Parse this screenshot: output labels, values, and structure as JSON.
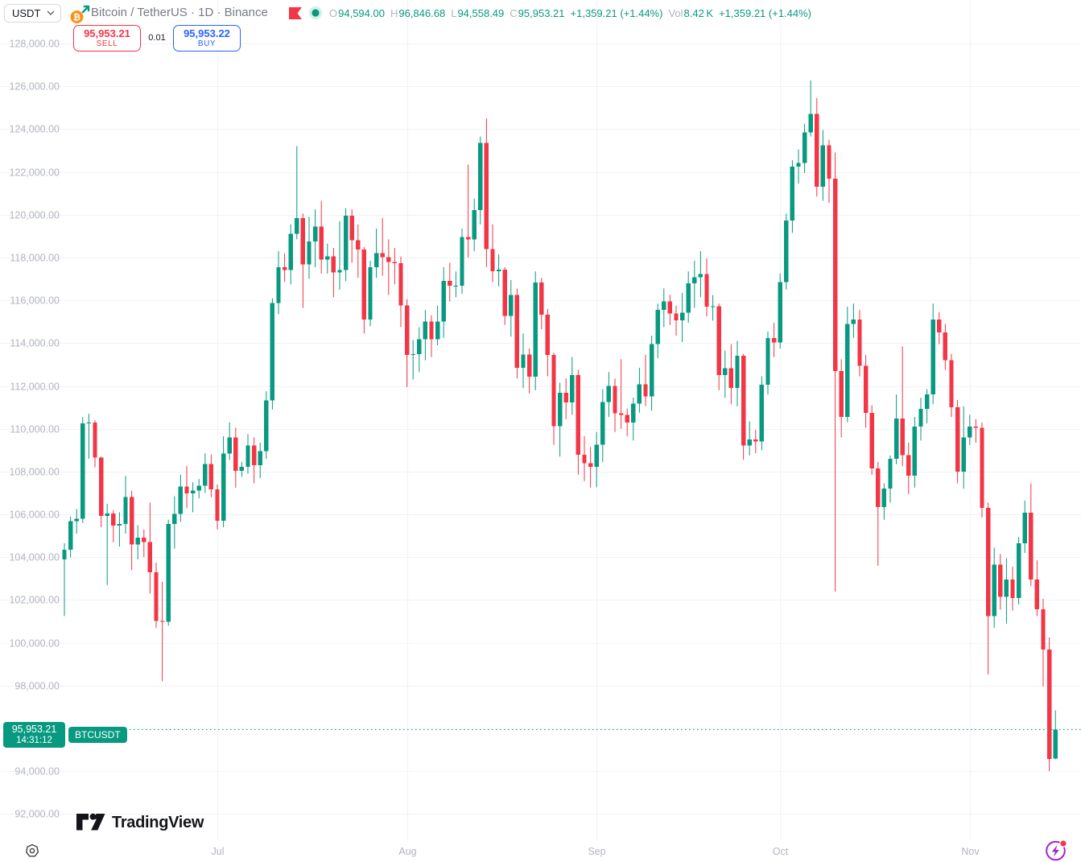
{
  "colors": {
    "up": "#089981",
    "down": "#f23645",
    "accent_teal": "#089981",
    "buy_blue": "#2962ff",
    "sell_red": "#f23645",
    "axis_text": "#b2b5be",
    "title_text": "#787b86",
    "dark_text": "#131722",
    "grid": "#f0f2f6",
    "fab_purple": "#a224c9",
    "bitcoin_orange": "#f7931a",
    "logo_black": "#14151a"
  },
  "header": {
    "quote_currency_selector": {
      "value": "USDT"
    },
    "symbol_title": "Bitcoin / TetherUS · 1D · Binance",
    "legend": {
      "o_label": "O",
      "o_value": "94,594.00",
      "h_label": "H",
      "h_value": "96,846.68",
      "l_label": "L",
      "l_value": "94,558.49",
      "c_label": "C",
      "c_value": "95,953.21",
      "change": "+1,359.21 (+1.44%)",
      "vol_label": "Vol",
      "vol_value": "8.42 K",
      "vol_change": "+1,359.21 (+1.44%)"
    },
    "sell_button": {
      "price": "95,953.21",
      "label": "SELL"
    },
    "buy_button": {
      "price": "95,953.22",
      "label": "BUY"
    },
    "spread": "0.01"
  },
  "price_line": {
    "price_text": "95,953.21",
    "countdown": "14:31:12",
    "symbol_badge": "BTCUSDT",
    "value": 95953.21
  },
  "footer": {
    "brand": "TradingView"
  },
  "chart_data": {
    "type": "candlestick",
    "title": "Bitcoin / TetherUS",
    "exchange": "Binance",
    "interval": "1D",
    "legend_position": "top-left",
    "grid": true,
    "ylim": [
      92000,
      128000
    ],
    "current_price": 95953.21,
    "y_ticks": [
      {
        "value": 128000,
        "label": "128,000.00"
      },
      {
        "value": 126000,
        "label": "126,000.00"
      },
      {
        "value": 124000,
        "label": "124,000.00"
      },
      {
        "value": 122000,
        "label": "122,000.00"
      },
      {
        "value": 120000,
        "label": "120,000.00"
      },
      {
        "value": 118000,
        "label": "118,000.00"
      },
      {
        "value": 116000,
        "label": "116,000.00"
      },
      {
        "value": 114000,
        "label": "114,000.00"
      },
      {
        "value": 112000,
        "label": "112,000.00"
      },
      {
        "value": 110000,
        "label": "110,000.00"
      },
      {
        "value": 108000,
        "label": "108,000.00"
      },
      {
        "value": 106000,
        "label": "106,000.00"
      },
      {
        "value": 104000,
        "label": "104,000.00"
      },
      {
        "value": 102000,
        "label": "102,000.00"
      },
      {
        "value": 100000,
        "label": "100,000.00"
      },
      {
        "value": 98000,
        "label": "98,000.00"
      },
      {
        "value": 96000,
        "label": null
      },
      {
        "value": 94000,
        "label": "94,000.00"
      },
      {
        "value": 92000,
        "label": "92,000.00"
      }
    ],
    "x_ticks": [
      {
        "label": "Jul",
        "index": 25
      },
      {
        "label": "Aug",
        "index": 56
      },
      {
        "label": "Sep",
        "index": 87
      },
      {
        "label": "Oct",
        "index": 117
      },
      {
        "label": "Nov",
        "index": 148
      }
    ],
    "candles": [
      [
        "2025-06-06",
        103900,
        104650,
        101250,
        104350
      ],
      [
        "2025-06-07",
        104350,
        105900,
        104000,
        105690
      ],
      [
        "2025-06-08",
        105690,
        106250,
        105100,
        105800
      ],
      [
        "2025-06-09",
        105800,
        110550,
        105600,
        110250
      ],
      [
        "2025-06-10",
        110250,
        110700,
        108600,
        110290
      ],
      [
        "2025-06-11",
        110290,
        110400,
        108200,
        108650
      ],
      [
        "2025-06-12",
        108650,
        108700,
        105400,
        105930
      ],
      [
        "2025-06-13",
        105930,
        106500,
        102700,
        106050
      ],
      [
        "2025-06-14",
        106050,
        106200,
        104700,
        105470
      ],
      [
        "2025-06-15",
        105470,
        106100,
        104500,
        105550
      ],
      [
        "2025-06-16",
        105550,
        107800,
        105100,
        106810
      ],
      [
        "2025-06-17",
        106810,
        107100,
        103400,
        104600
      ],
      [
        "2025-06-18",
        104600,
        105500,
        103900,
        104920
      ],
      [
        "2025-06-19",
        104920,
        105300,
        104000,
        104710
      ],
      [
        "2025-06-20",
        104710,
        106550,
        102300,
        103290
      ],
      [
        "2025-06-21",
        103290,
        103750,
        100700,
        101020
      ],
      [
        "2025-06-22",
        101020,
        102850,
        98200,
        100990
      ],
      [
        "2025-06-23",
        100990,
        105750,
        100800,
        105550
      ],
      [
        "2025-06-24",
        105550,
        106850,
        104400,
        106020
      ],
      [
        "2025-06-25",
        106020,
        107850,
        105650,
        107300
      ],
      [
        "2025-06-26",
        107300,
        108250,
        106300,
        106980
      ],
      [
        "2025-06-27",
        106980,
        107500,
        106100,
        107110
      ],
      [
        "2025-06-28",
        107110,
        107650,
        106750,
        107330
      ],
      [
        "2025-06-29",
        107330,
        108850,
        107000,
        108350
      ],
      [
        "2025-06-30",
        108350,
        108800,
        106800,
        107170
      ],
      [
        "2025-07-01",
        107170,
        107400,
        105300,
        105700
      ],
      [
        "2025-07-02",
        105700,
        109650,
        105400,
        108850
      ],
      [
        "2025-07-03",
        108850,
        110300,
        108550,
        109600
      ],
      [
        "2025-07-04",
        109600,
        110050,
        107250,
        108040
      ],
      [
        "2025-07-05",
        108040,
        108450,
        107750,
        108230
      ],
      [
        "2025-07-06",
        108230,
        109750,
        107900,
        109220
      ],
      [
        "2025-07-07",
        109220,
        109600,
        107450,
        108300
      ],
      [
        "2025-07-08",
        108300,
        109350,
        107700,
        108950
      ],
      [
        "2025-07-09",
        108950,
        111750,
        108600,
        111330
      ],
      [
        "2025-07-10",
        111330,
        116100,
        110900,
        115880
      ],
      [
        "2025-07-11",
        115880,
        118300,
        115350,
        117550
      ],
      [
        "2025-07-12",
        117550,
        118200,
        116850,
        117420
      ],
      [
        "2025-07-13",
        117420,
        119550,
        116750,
        119110
      ],
      [
        "2025-07-14",
        119110,
        123200,
        118850,
        119850
      ],
      [
        "2025-07-15",
        119850,
        120050,
        115650,
        117680
      ],
      [
        "2025-07-16",
        117680,
        119900,
        117000,
        118750
      ],
      [
        "2025-07-17",
        118750,
        120250,
        117550,
        119440
      ],
      [
        "2025-07-18",
        119440,
        120650,
        117250,
        117900
      ],
      [
        "2025-07-19",
        117900,
        118650,
        117250,
        118050
      ],
      [
        "2025-07-20",
        118050,
        118450,
        116150,
        117300
      ],
      [
        "2025-07-21",
        117300,
        119700,
        116500,
        117420
      ],
      [
        "2025-07-22",
        117420,
        120300,
        116900,
        119960
      ],
      [
        "2025-07-23",
        119960,
        120250,
        117750,
        118800
      ],
      [
        "2025-07-24",
        118800,
        119550,
        117050,
        118370
      ],
      [
        "2025-07-25",
        118370,
        118500,
        114450,
        115100
      ],
      [
        "2025-07-26",
        115100,
        117850,
        114800,
        117540
      ],
      [
        "2025-07-27",
        117540,
        119350,
        117050,
        118200
      ],
      [
        "2025-07-28",
        118200,
        119850,
        117150,
        118010
      ],
      [
        "2025-07-29",
        118010,
        118850,
        116250,
        117800
      ],
      [
        "2025-07-30",
        117800,
        118450,
        116750,
        117740
      ],
      [
        "2025-07-31",
        117740,
        118050,
        114750,
        115760
      ],
      [
        "2025-08-01",
        115760,
        116050,
        111950,
        113450
      ],
      [
        "2025-08-02",
        113450,
        114150,
        112300,
        113480
      ],
      [
        "2025-08-03",
        113480,
        114750,
        112650,
        114180
      ],
      [
        "2025-08-04",
        114180,
        115550,
        113200,
        115010
      ],
      [
        "2025-08-05",
        115010,
        115300,
        113350,
        114180
      ],
      [
        "2025-08-06",
        114180,
        115750,
        113900,
        115010
      ],
      [
        "2025-08-07",
        115010,
        117550,
        114250,
        116900
      ],
      [
        "2025-08-08",
        116900,
        117750,
        115950,
        116680
      ],
      [
        "2025-08-09",
        116680,
        117350,
        116150,
        116680
      ],
      [
        "2025-08-10",
        116680,
        119350,
        116300,
        118960
      ],
      [
        "2025-08-11",
        118960,
        122350,
        118000,
        118850
      ],
      [
        "2025-08-12",
        118850,
        120750,
        118300,
        120220
      ],
      [
        "2025-08-13",
        120220,
        123650,
        119550,
        123350
      ],
      [
        "2025-08-14",
        123350,
        124500,
        117550,
        118400
      ],
      [
        "2025-08-15",
        118400,
        119550,
        116850,
        117350
      ],
      [
        "2025-08-16",
        117350,
        118150,
        116650,
        117430
      ],
      [
        "2025-08-17",
        117430,
        117550,
        114850,
        115280
      ],
      [
        "2025-08-18",
        115280,
        116950,
        114300,
        116250
      ],
      [
        "2025-08-19",
        116250,
        116550,
        112350,
        112850
      ],
      [
        "2025-08-20",
        112850,
        114450,
        111900,
        113460
      ],
      [
        "2025-08-21",
        113460,
        113750,
        111650,
        112440
      ],
      [
        "2025-08-22",
        112440,
        117350,
        111800,
        116840
      ],
      [
        "2025-08-23",
        116840,
        117050,
        114650,
        115330
      ],
      [
        "2025-08-24",
        115330,
        115600,
        112450,
        113440
      ],
      [
        "2025-08-25",
        113440,
        113550,
        109250,
        110130
      ],
      [
        "2025-08-26",
        110130,
        112150,
        108700,
        111680
      ],
      [
        "2025-08-27",
        111680,
        112350,
        110450,
        111230
      ],
      [
        "2025-08-28",
        111230,
        113350,
        110650,
        112510
      ],
      [
        "2025-08-29",
        112510,
        112750,
        107850,
        108790
      ],
      [
        "2025-08-30",
        108790,
        109650,
        107550,
        108390
      ],
      [
        "2025-08-31",
        108390,
        109150,
        107250,
        108230
      ],
      [
        "2025-09-01",
        108230,
        109850,
        107270,
        109250
      ],
      [
        "2025-09-02",
        109250,
        111850,
        108450,
        111240
      ],
      [
        "2025-09-03",
        111240,
        112650,
        110550,
        112000
      ],
      [
        "2025-09-04",
        112000,
        112350,
        109850,
        110720
      ],
      [
        "2025-09-05",
        110720,
        113250,
        110000,
        110650
      ],
      [
        "2025-09-06",
        110650,
        110950,
        109650,
        110290
      ],
      [
        "2025-09-07",
        110290,
        111450,
        109450,
        111170
      ],
      [
        "2025-09-08",
        111170,
        112850,
        110750,
        112070
      ],
      [
        "2025-09-09",
        112070,
        113450,
        111050,
        111510
      ],
      [
        "2025-09-10",
        111510,
        114350,
        110850,
        113950
      ],
      [
        "2025-09-11",
        113950,
        115850,
        113300,
        115560
      ],
      [
        "2025-09-12",
        115560,
        116550,
        114750,
        115950
      ],
      [
        "2025-09-13",
        115950,
        116250,
        114850,
        115390
      ],
      [
        "2025-09-14",
        115390,
        115750,
        114350,
        115070
      ],
      [
        "2025-09-15",
        115070,
        116350,
        114050,
        115420
      ],
      [
        "2025-09-16",
        115420,
        117350,
        114950,
        116790
      ],
      [
        "2025-09-17",
        116790,
        117850,
        115650,
        117080
      ],
      [
        "2025-09-18",
        117080,
        118300,
        116150,
        117220
      ],
      [
        "2025-09-19",
        117220,
        117950,
        115250,
        115700
      ],
      [
        "2025-09-20",
        115700,
        116250,
        115050,
        115730
      ],
      [
        "2025-09-21",
        115730,
        115850,
        111800,
        112500
      ],
      [
        "2025-09-22",
        112500,
        113650,
        111450,
        112830
      ],
      [
        "2025-09-23",
        112830,
        113950,
        111150,
        111900
      ],
      [
        "2025-09-24",
        111900,
        114100,
        111050,
        113420
      ],
      [
        "2025-09-25",
        113420,
        113500,
        108550,
        109210
      ],
      [
        "2025-09-26",
        109210,
        110350,
        108750,
        109500
      ],
      [
        "2025-09-27",
        109500,
        109950,
        108850,
        109410
      ],
      [
        "2025-09-28",
        109410,
        112450,
        109000,
        112050
      ],
      [
        "2025-09-29",
        112050,
        114550,
        111600,
        114230
      ],
      [
        "2025-09-30",
        114230,
        114950,
        113350,
        114040
      ],
      [
        "2025-10-01",
        114040,
        117250,
        113750,
        116860
      ],
      [
        "2025-10-02",
        116860,
        120050,
        116500,
        119720
      ],
      [
        "2025-10-03",
        119720,
        122550,
        119150,
        122240
      ],
      [
        "2025-10-04",
        122240,
        123050,
        121450,
        122420
      ],
      [
        "2025-10-05",
        122420,
        124250,
        121950,
        123850
      ],
      [
        "2025-10-06",
        123850,
        126270,
        123650,
        124710
      ],
      [
        "2025-10-07",
        124710,
        125450,
        120850,
        121300
      ],
      [
        "2025-10-08",
        121300,
        123950,
        120650,
        123250
      ],
      [
        "2025-10-09",
        123250,
        123500,
        120550,
        121690
      ],
      [
        "2025-10-10",
        121690,
        122900,
        102400,
        112700
      ],
      [
        "2025-10-11",
        112700,
        113250,
        109600,
        110550
      ],
      [
        "2025-10-12",
        110550,
        115700,
        110300,
        114900
      ],
      [
        "2025-10-13",
        114900,
        115850,
        114250,
        115100
      ],
      [
        "2025-10-14",
        115100,
        115550,
        112450,
        112950
      ],
      [
        "2025-10-15",
        112950,
        113450,
        110050,
        110740
      ],
      [
        "2025-10-16",
        110740,
        111100,
        107850,
        108150
      ],
      [
        "2025-10-17",
        108150,
        108450,
        103600,
        106350
      ],
      [
        "2025-10-18",
        106350,
        107450,
        105750,
        107200
      ],
      [
        "2025-10-19",
        107200,
        108750,
        106550,
        108600
      ],
      [
        "2025-10-20",
        108600,
        111600,
        108350,
        110480
      ],
      [
        "2025-10-21",
        110480,
        113850,
        108250,
        108760
      ],
      [
        "2025-10-22",
        108760,
        109350,
        106950,
        107800
      ],
      [
        "2025-10-23",
        107800,
        110550,
        107250,
        110100
      ],
      [
        "2025-10-24",
        110100,
        111450,
        109450,
        110930
      ],
      [
        "2025-10-25",
        110930,
        111850,
        110250,
        111600
      ],
      [
        "2025-10-26",
        111600,
        115850,
        111150,
        115100
      ],
      [
        "2025-10-27",
        115100,
        115450,
        113950,
        114500
      ],
      [
        "2025-10-28",
        114500,
        114900,
        112750,
        113200
      ],
      [
        "2025-10-29",
        113200,
        113500,
        110550,
        111000
      ],
      [
        "2025-10-30",
        111000,
        111350,
        107450,
        108000
      ],
      [
        "2025-10-31",
        108000,
        111050,
        107200,
        109600
      ],
      [
        "2025-11-01",
        109600,
        110650,
        109250,
        110100
      ],
      [
        "2025-11-02",
        110100,
        110450,
        109350,
        110050
      ],
      [
        "2025-11-03",
        110050,
        110300,
        105850,
        106300
      ],
      [
        "2025-11-04",
        106300,
        106550,
        98520,
        101250
      ],
      [
        "2025-11-05",
        101250,
        104450,
        100700,
        103650
      ],
      [
        "2025-11-06",
        103650,
        104150,
        101550,
        102150
      ],
      [
        "2025-11-07",
        102150,
        103950,
        100900,
        102950
      ],
      [
        "2025-11-08",
        102950,
        103550,
        101500,
        102090
      ],
      [
        "2025-11-09",
        102090,
        104950,
        101800,
        104650
      ],
      [
        "2025-11-10",
        104650,
        106650,
        104200,
        106080
      ],
      [
        "2025-11-11",
        106080,
        107450,
        102650,
        102960
      ],
      [
        "2025-11-12",
        102960,
        103850,
        101250,
        101570
      ],
      [
        "2025-11-13",
        101570,
        102050,
        97960,
        99690
      ],
      [
        "2025-11-14",
        99690,
        100250,
        94010,
        94575
      ],
      [
        "2025-11-15",
        94594,
        96846,
        94558,
        95953.21
      ]
    ]
  }
}
